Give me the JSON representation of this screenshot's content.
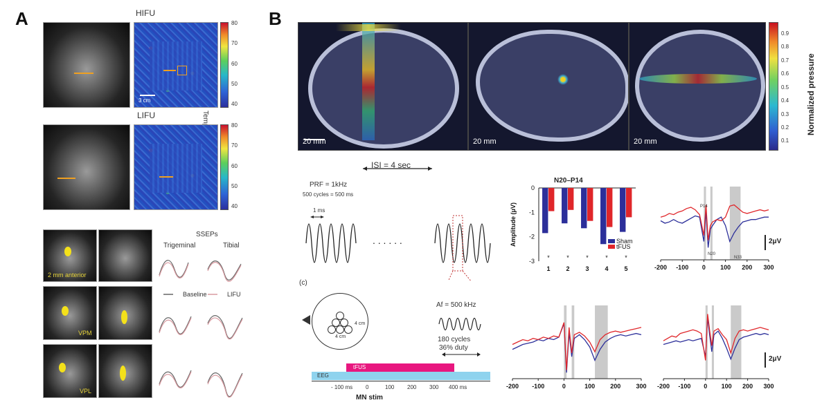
{
  "panelA": {
    "letter": "A",
    "hifu_title": "HIFU",
    "lifu_title": "LIFU",
    "scale_label": "3 cm",
    "colorbar_label": "Temperature (°C)",
    "colorbar_ticks": [
      "80",
      "70",
      "60",
      "50",
      "40"
    ],
    "sseps_title": "SSEPs",
    "col_trigeminal": "Trigeminal",
    "col_tibial": "Tibial",
    "legend_baseline": "Baseline",
    "legend_lifu": "LIFU",
    "row_labels": [
      "2 mm anterior",
      "VPM",
      "VPL"
    ]
  },
  "panelB": {
    "letter": "B",
    "scalebars": [
      "20 mm",
      "20 mm",
      "20 mm"
    ],
    "pressure_label": "Normalized pressure",
    "pressure_ticks": [
      "0.9",
      "0.8",
      "0.7",
      "0.6",
      "0.5",
      "0.4",
      "0.3",
      "0.2",
      "0.1"
    ],
    "isi_label": "ISI = 4 sec",
    "prf_label": "PRF = 1kHz",
    "cycles_label": "500 cycles = 500 ms",
    "ms_label": "1 ms",
    "dots": ". . . . . .",
    "c_label": "(c)",
    "af_label": "Af = 500 kHz",
    "cycles180": "180 cycles",
    "duty": "36% duty",
    "cm4_a": "4 cm",
    "cm4_b": "4 cm",
    "tfus_bar": "tFUS",
    "eeg_bar": "EEG",
    "timeline_ticks": [
      "- 100 ms",
      "0",
      "100",
      "200",
      "300",
      "400 ms"
    ],
    "mn_stim": "MN stim",
    "n20_title": "N20–P14",
    "p14": "P14",
    "n20": "N20",
    "n33": "N33",
    "uv_label": "2μV"
  },
  "colors": {
    "sham": "#2c2f9a",
    "tfus": "#e0262a",
    "pink_bar": "#e8177f",
    "eeg_bar": "#8fd3ee"
  },
  "chart_data": [
    {
      "type": "bar",
      "title": "N20–P14",
      "xlabel": "",
      "ylabel": "Amplitude (μV)",
      "categories": [
        "1",
        "2",
        "3",
        "4",
        "5"
      ],
      "ylim": [
        -3,
        0
      ],
      "yticks": [
        "0",
        "-1",
        "-2",
        "-3"
      ],
      "significance": [
        "*",
        "*",
        "*",
        "*",
        "*"
      ],
      "series": [
        {
          "name": "Sham",
          "values": [
            -1.85,
            -1.45,
            -1.65,
            -2.3,
            -1.8
          ]
        },
        {
          "name": "tFUS",
          "values": [
            -0.95,
            -0.9,
            -1.35,
            -1.6,
            -1.2
          ]
        }
      ]
    },
    {
      "type": "line",
      "title": "",
      "xlabel": "",
      "ylabel": "",
      "xlim": [
        -200,
        300
      ],
      "xticks": [
        "-200",
        "-100",
        "0",
        "100",
        "200",
        "300"
      ],
      "x": [
        -200,
        -180,
        -160,
        -140,
        -120,
        -100,
        -80,
        -60,
        -40,
        -20,
        0,
        10,
        20,
        30,
        40,
        60,
        80,
        100,
        120,
        140,
        160,
        180,
        200,
        220,
        240,
        260,
        280,
        300
      ],
      "series": [
        {
          "name": "Sham",
          "values": [
            0.2,
            0.0,
            0.1,
            0.3,
            0.1,
            0.0,
            0.2,
            0.4,
            0.6,
            0.5,
            -1.5,
            1.0,
            -2.0,
            -0.5,
            -0.2,
            0.3,
            0.5,
            -0.2,
            -1.5,
            -0.8,
            -0.3,
            0.1,
            0.2,
            0.3,
            0.3,
            0.4,
            0.5,
            0.5
          ]
        },
        {
          "name": "tFUS",
          "values": [
            0.5,
            0.6,
            0.8,
            0.7,
            0.9,
            1.0,
            1.2,
            1.3,
            1.1,
            0.7,
            -1.0,
            1.5,
            -1.4,
            -0.2,
            0.1,
            0.3,
            0.2,
            0.5,
            1.4,
            1.5,
            1.2,
            0.9,
            0.8,
            0.9,
            1.0,
            1.1,
            1.0,
            1.1
          ]
        }
      ]
    },
    {
      "type": "line",
      "title": "",
      "xlim": [
        -200,
        300
      ],
      "xticks": [
        "-200",
        "-100",
        "0",
        "100",
        "200",
        "300"
      ],
      "x": [
        -200,
        -180,
        -160,
        -140,
        -120,
        -100,
        -80,
        -60,
        -40,
        -20,
        0,
        10,
        20,
        30,
        40,
        60,
        80,
        100,
        120,
        140,
        160,
        180,
        200,
        220,
        240,
        260,
        280,
        300
      ],
      "series": [
        {
          "name": "Sham",
          "values": [
            -0.6,
            -0.4,
            -0.2,
            -0.1,
            0.0,
            0.2,
            0.1,
            0.3,
            0.2,
            0.4,
            1.5,
            -2.5,
            0.8,
            -1.2,
            0.3,
            0.6,
            0.2,
            -0.4,
            -1.5,
            -0.6,
            0.0,
            0.3,
            0.5,
            0.6,
            0.5,
            0.6,
            0.7,
            0.6
          ]
        },
        {
          "name": "tFUS",
          "values": [
            -0.2,
            0.0,
            0.2,
            0.1,
            0.3,
            0.2,
            0.4,
            0.3,
            0.5,
            0.4,
            1.6,
            -2.3,
            1.2,
            -0.9,
            0.6,
            0.8,
            0.5,
            0.0,
            -0.8,
            0.2,
            0.6,
            0.8,
            0.9,
            0.8,
            0.9,
            1.0,
            1.1,
            1.2
          ]
        }
      ]
    },
    {
      "type": "line",
      "title": "",
      "xlim": [
        -200,
        300
      ],
      "xticks": [
        "-200",
        "-100",
        "0",
        "100",
        "200",
        "300"
      ],
      "x": [
        -200,
        -180,
        -160,
        -140,
        -120,
        -100,
        -80,
        -60,
        -40,
        -20,
        0,
        10,
        20,
        30,
        40,
        60,
        80,
        100,
        120,
        140,
        160,
        180,
        200,
        220,
        240,
        260,
        280,
        300
      ],
      "series": [
        {
          "name": "Sham",
          "values": [
            -0.2,
            -0.1,
            0.0,
            0.1,
            0.0,
            0.1,
            0.2,
            0.1,
            0.2,
            0.3,
            -1.2,
            2.0,
            0.5,
            -0.8,
            0.6,
            0.9,
            0.3,
            -0.5,
            -1.4,
            -0.5,
            0.2,
            0.4,
            0.5,
            0.6,
            0.7,
            0.6,
            0.7,
            0.6
          ]
        },
        {
          "name": "tFUS",
          "values": [
            0.1,
            0.3,
            0.5,
            0.4,
            0.7,
            0.8,
            0.9,
            1.0,
            0.9,
            0.7,
            -1.5,
            2.3,
            0.9,
            -0.3,
            0.9,
            1.1,
            0.6,
            0.2,
            -0.9,
            0.3,
            0.9,
            1.0,
            0.9,
            1.0,
            1.1,
            1.2,
            1.1,
            1.0
          ]
        }
      ]
    }
  ]
}
